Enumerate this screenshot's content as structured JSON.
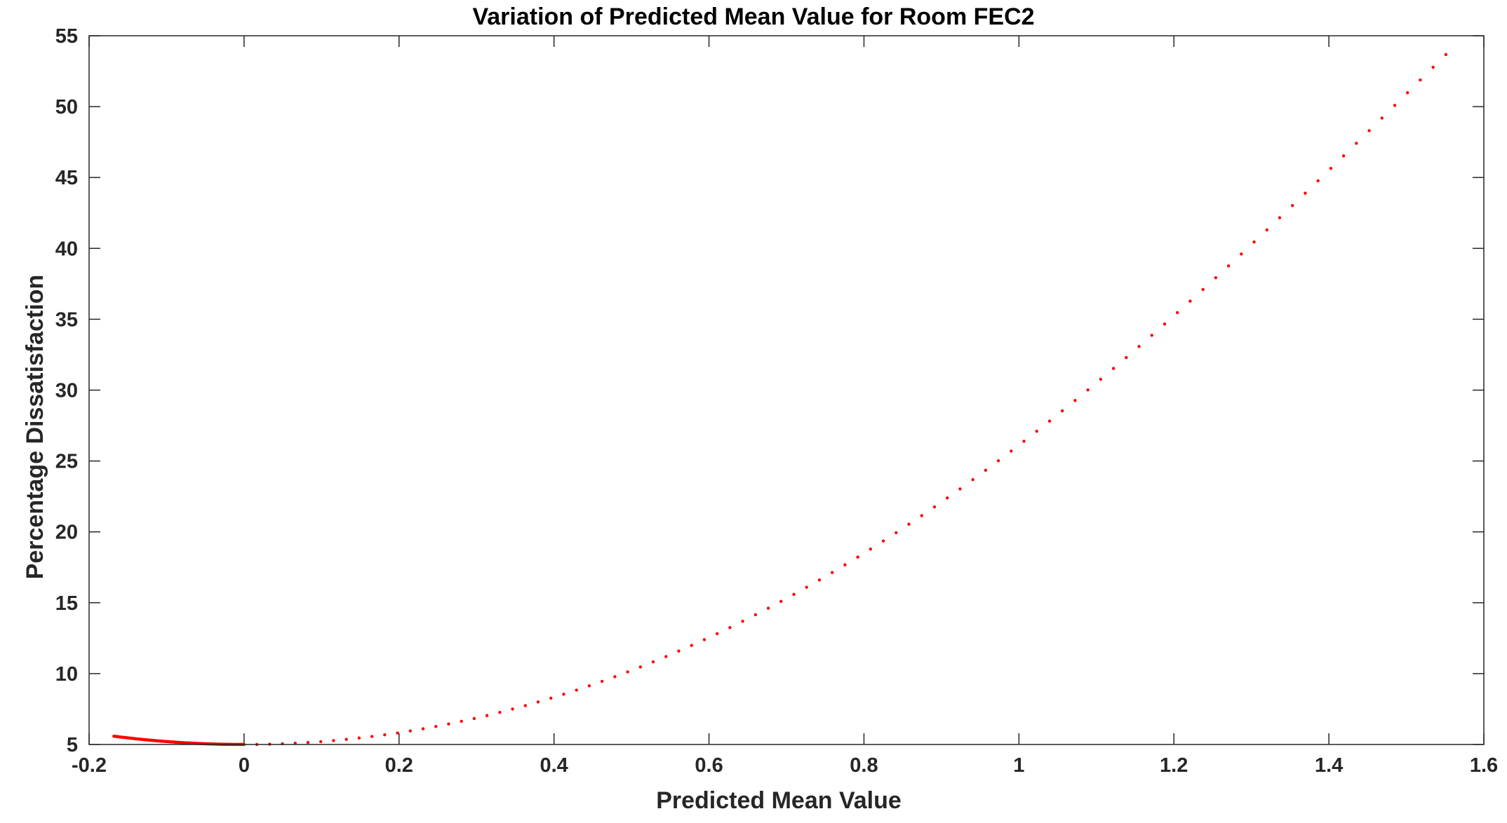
{
  "chart_data": {
    "type": "scatter",
    "title": "Variation of Predicted Mean Value for Room FEC2",
    "xlabel": "Predicted Mean Value",
    "ylabel": "Percentage Dissatisfaction",
    "xlim": [
      -0.2,
      1.6
    ],
    "ylim": [
      5,
      55
    ],
    "x_ticks": [
      "-0.2",
      "0",
      "0.2",
      "0.4",
      "0.6",
      "0.8",
      "1",
      "1.2",
      "1.4",
      "1.6"
    ],
    "y_ticks": [
      "5",
      "10",
      "15",
      "20",
      "25",
      "30",
      "35",
      "40",
      "45",
      "50",
      "55"
    ],
    "grid": false,
    "box": true,
    "marker_color": "#ff0000",
    "series": [
      {
        "x_start": -0.168,
        "x_end": 1.565,
        "x_step_dense": 0.001,
        "x_step_sparse": 0.0165,
        "dense_until_x": 0.0,
        "formula": "PPD = 100 - 95*exp(-0.03353*PMV^4 - 0.2179*PMV^2)"
      }
    ]
  }
}
